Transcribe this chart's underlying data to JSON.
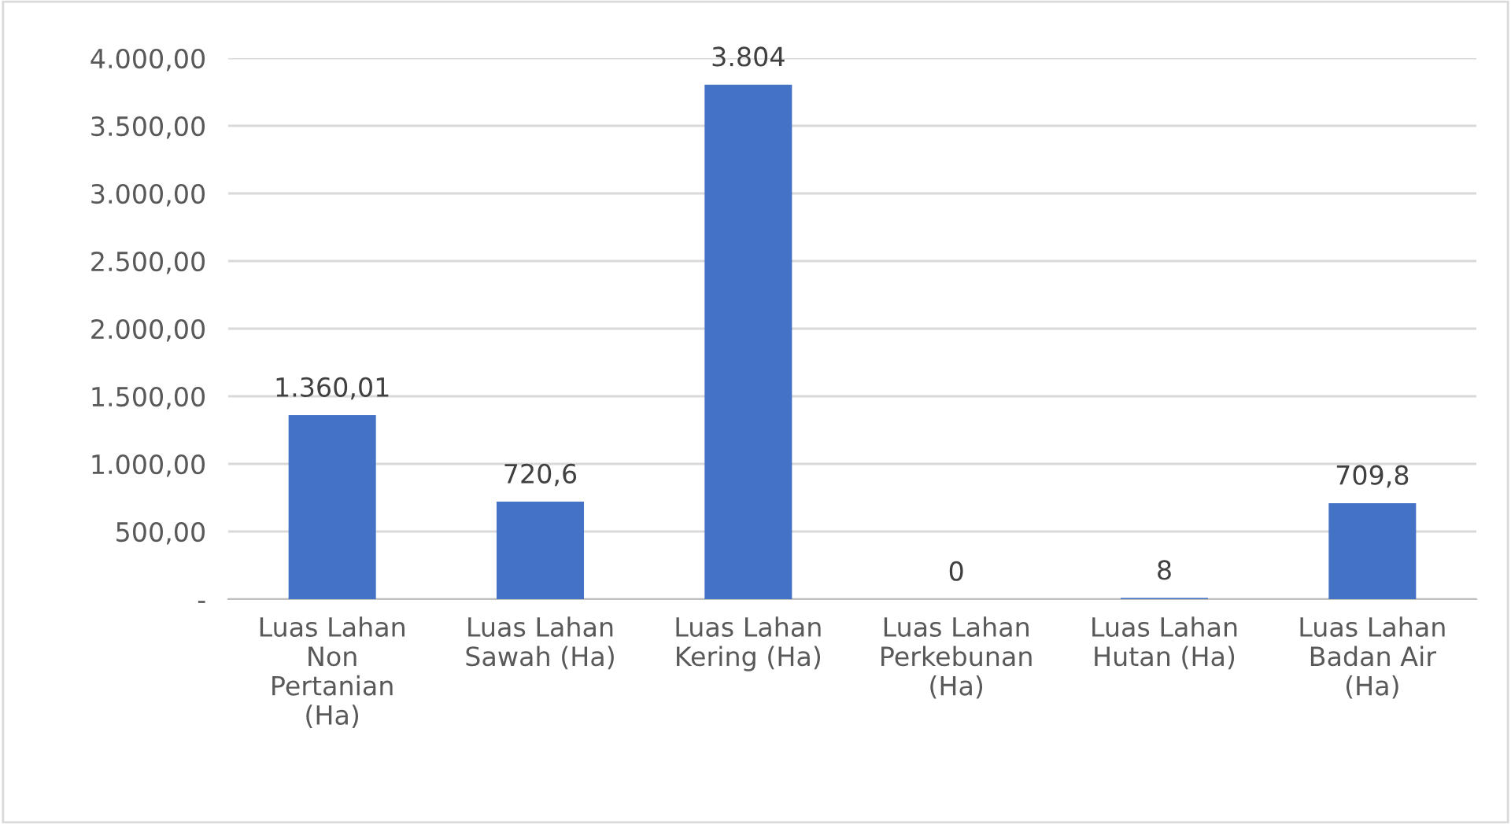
{
  "chart_data": {
    "type": "bar",
    "categories": [
      "Luas Lahan Non Pertanian (Ha)",
      "Luas Lahan Sawah (Ha)",
      "Luas Lahan Kering (Ha)",
      "Luas Lahan Perkebunan (Ha)",
      "Luas Lahan Hutan (Ha)",
      "Luas Lahan Badan Air (Ha)"
    ],
    "values": [
      1360.01,
      720.6,
      3804,
      0,
      8,
      709.8
    ],
    "value_labels": [
      "1.360,01",
      "720,6",
      "3.804",
      "0",
      "8",
      "709,8"
    ],
    "color": "#4472c4",
    "ylim": [
      0,
      4000
    ],
    "yticks": [
      {
        "value": 0,
        "label": "-"
      },
      {
        "value": 500,
        "label": "500,00"
      },
      {
        "value": 1000,
        "label": "1.000,00"
      },
      {
        "value": 1500,
        "label": "1.500,00"
      },
      {
        "value": 2000,
        "label": "2.000,00"
      },
      {
        "value": 2500,
        "label": "2.500,00"
      },
      {
        "value": 3000,
        "label": "3.000,00"
      },
      {
        "value": 3500,
        "label": "3.500,00"
      },
      {
        "value": 4000,
        "label": "4.000,00"
      }
    ],
    "grid": "y"
  }
}
